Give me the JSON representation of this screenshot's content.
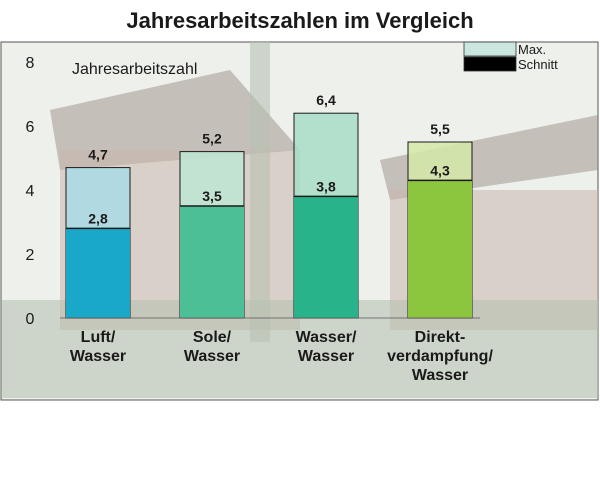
{
  "chart_data": {
    "type": "bar",
    "title": "Jahresarbeitszahlen im Vergleich",
    "ylabel": "Jahresarbeitszahl",
    "xlabel": "",
    "ylim": [
      0,
      8
    ],
    "yticks": [
      "0",
      "2",
      "4",
      "6",
      "8"
    ],
    "grid": false,
    "legend_position": "top-right",
    "categories": [
      "Luft/\nWasser",
      "Sole/\nWasser",
      "Wasser/\nWasser",
      "Direkt-\nverdampfung/\nWasser"
    ],
    "series": [
      {
        "name": "Max.",
        "values": [
          4.7,
          5.2,
          6.4,
          5.5
        ],
        "labels": [
          "4,7",
          "5,2",
          "6,4",
          "5,5"
        ]
      },
      {
        "name": "Schnitt",
        "values": [
          2.8,
          3.5,
          3.8,
          4.3
        ],
        "labels": [
          "2,8",
          "3,5",
          "3,8",
          "4,3"
        ]
      }
    ],
    "colors": {
      "avg": [
        "#1aa8c8",
        "#4dbf97",
        "#28b38b",
        "#8cc63f"
      ],
      "max": [
        "#a8dbe6",
        "#bde5d3",
        "#a8dcc8",
        "#d3e8a8"
      ],
      "legend_max": "#cbe6df",
      "legend_avg": "#000000"
    }
  }
}
